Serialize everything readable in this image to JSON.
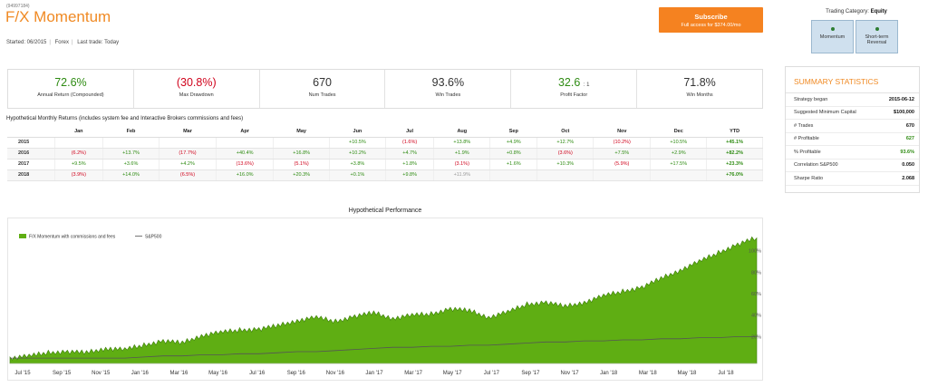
{
  "header": {
    "system_id": "(94997184)",
    "title": "F/X Momentum",
    "started": "Started: 06/2015",
    "market": "Forex",
    "last_trade": "Last trade: Today"
  },
  "subscribe": {
    "label": "Subscribe",
    "price": "Full access for $374.00/mo"
  },
  "trading_category": {
    "label": "Trading Category:",
    "value": "Equity",
    "categories": [
      "Momentum",
      "Short-term Reversal"
    ]
  },
  "stats": [
    {
      "value": "72.6%",
      "label": "Annual Return (Compounded)",
      "color": "green"
    },
    {
      "value": "(30.8%)",
      "label": "Max Drawdown",
      "color": "red"
    },
    {
      "value": "670",
      "label": "Num Trades",
      "color": "dark"
    },
    {
      "value": "93.6%",
      "label": "Win Trades",
      "color": "dark"
    },
    {
      "value": "32.6",
      "suffix": ": 1",
      "label": "Profit Factor",
      "color": "green"
    },
    {
      "value": "71.8%",
      "label": "Win Months",
      "color": "dark"
    }
  ],
  "monthly": {
    "caption": "Hypothetical Monthly Returns (includes system fee and Interactive Brokers commissions and fees)",
    "columns": [
      "",
      "Jan",
      "Feb",
      "Mar",
      "Apr",
      "May",
      "Jun",
      "Jul",
      "Aug",
      "Sep",
      "Oct",
      "Nov",
      "Dec",
      "YTD"
    ],
    "rows": [
      {
        "year": "2015",
        "cells": [
          "",
          "",
          "",
          "",
          "",
          "+10.5%",
          "(1.6%)",
          "+13.8%",
          "+4.9%",
          "+12.7%",
          "(10.2%)",
          "+10.5%",
          "+45.1%"
        ]
      },
      {
        "year": "2016",
        "cells": [
          "(6.2%)",
          "+13.7%",
          "(17.7%)",
          "+40.4%",
          "+16.8%",
          "+10.2%",
          "+4.7%",
          "+1.9%",
          "+0.8%",
          "(3.6%)",
          "+7.5%",
          "+2.9%",
          "+82.2%"
        ]
      },
      {
        "year": "2017",
        "cells": [
          "+9.5%",
          "+3.6%",
          "+4.2%",
          "(13.6%)",
          "(5.1%)",
          "+3.8%",
          "+1.8%",
          "(3.1%)",
          "+1.6%",
          "+10.3%",
          "(5.9%)",
          "+17.5%",
          "+23.3%"
        ]
      },
      {
        "year": "2018",
        "cells": [
          "(3.9%)",
          "+14.0%",
          "(6.5%)",
          "+16.0%",
          "+20.3%",
          "+0.1%",
          "+9.8%",
          "+11.9%",
          "",
          "",
          "",
          "",
          "+76.0%"
        ]
      }
    ]
  },
  "summary": {
    "title": "SUMMARY STATISTICS",
    "rows": [
      {
        "key": "Strategy began",
        "value": "2015-06-12"
      },
      {
        "key": "Suggested Minimum Capital",
        "value": "$100,000"
      },
      {
        "key": "# Trades",
        "value": "670"
      },
      {
        "key": "# Profitable",
        "value": "627",
        "green": true
      },
      {
        "key": "% Profitable",
        "value": "93.6%",
        "green": true
      },
      {
        "key": "Correlation S&P500",
        "value": "0.050"
      },
      {
        "key": "Sharpe Ratio",
        "value": "2.068"
      }
    ]
  },
  "chart_data": {
    "type": "area",
    "title": "Hypothetical Performance",
    "colors": {
      "system": "#5fae13",
      "system_edge": "#3b7d0a",
      "sp500": "#555555"
    },
    "series": [
      {
        "name": "F/X Momentum with commissions and fees",
        "values": [
          0,
          2,
          5,
          6,
          5,
          9,
          8,
          12,
          16,
          14,
          21,
          24,
          26,
          27,
          30,
          35,
          38,
          34,
          39,
          42,
          37,
          40,
          41,
          46,
          44,
          38,
          43,
          50,
          52,
          48,
          52,
          58,
          62,
          66,
          74,
          82,
          90,
          98,
          106,
          112
        ]
      },
      {
        "name": "S&P500",
        "values": [
          0,
          0,
          0,
          0,
          0,
          0,
          0,
          1,
          2,
          2,
          3,
          3,
          4,
          4,
          5,
          6,
          6,
          7,
          8,
          9,
          10,
          10,
          11,
          11,
          12,
          12,
          13,
          14,
          15,
          15,
          16,
          16,
          17,
          17,
          18,
          18,
          19,
          19,
          20,
          20
        ]
      }
    ],
    "x_labels": [
      "Jul '15",
      "Sep '15",
      "Nov '15",
      "Jan '16",
      "Mar '16",
      "May '16",
      "Jul '16",
      "Sep '16",
      "Nov '16",
      "Jan '17",
      "Mar '17",
      "May '17",
      "Jul '17",
      "Sep '17",
      "Nov '17",
      "Jan '18",
      "Mar '18",
      "May '18",
      "Jul '18"
    ],
    "y_ticks": [
      "20%",
      "40%",
      "60%",
      "80%",
      "100%"
    ],
    "ylim": [
      -5,
      120
    ],
    "legend_position": "top-left",
    "grid": false
  }
}
